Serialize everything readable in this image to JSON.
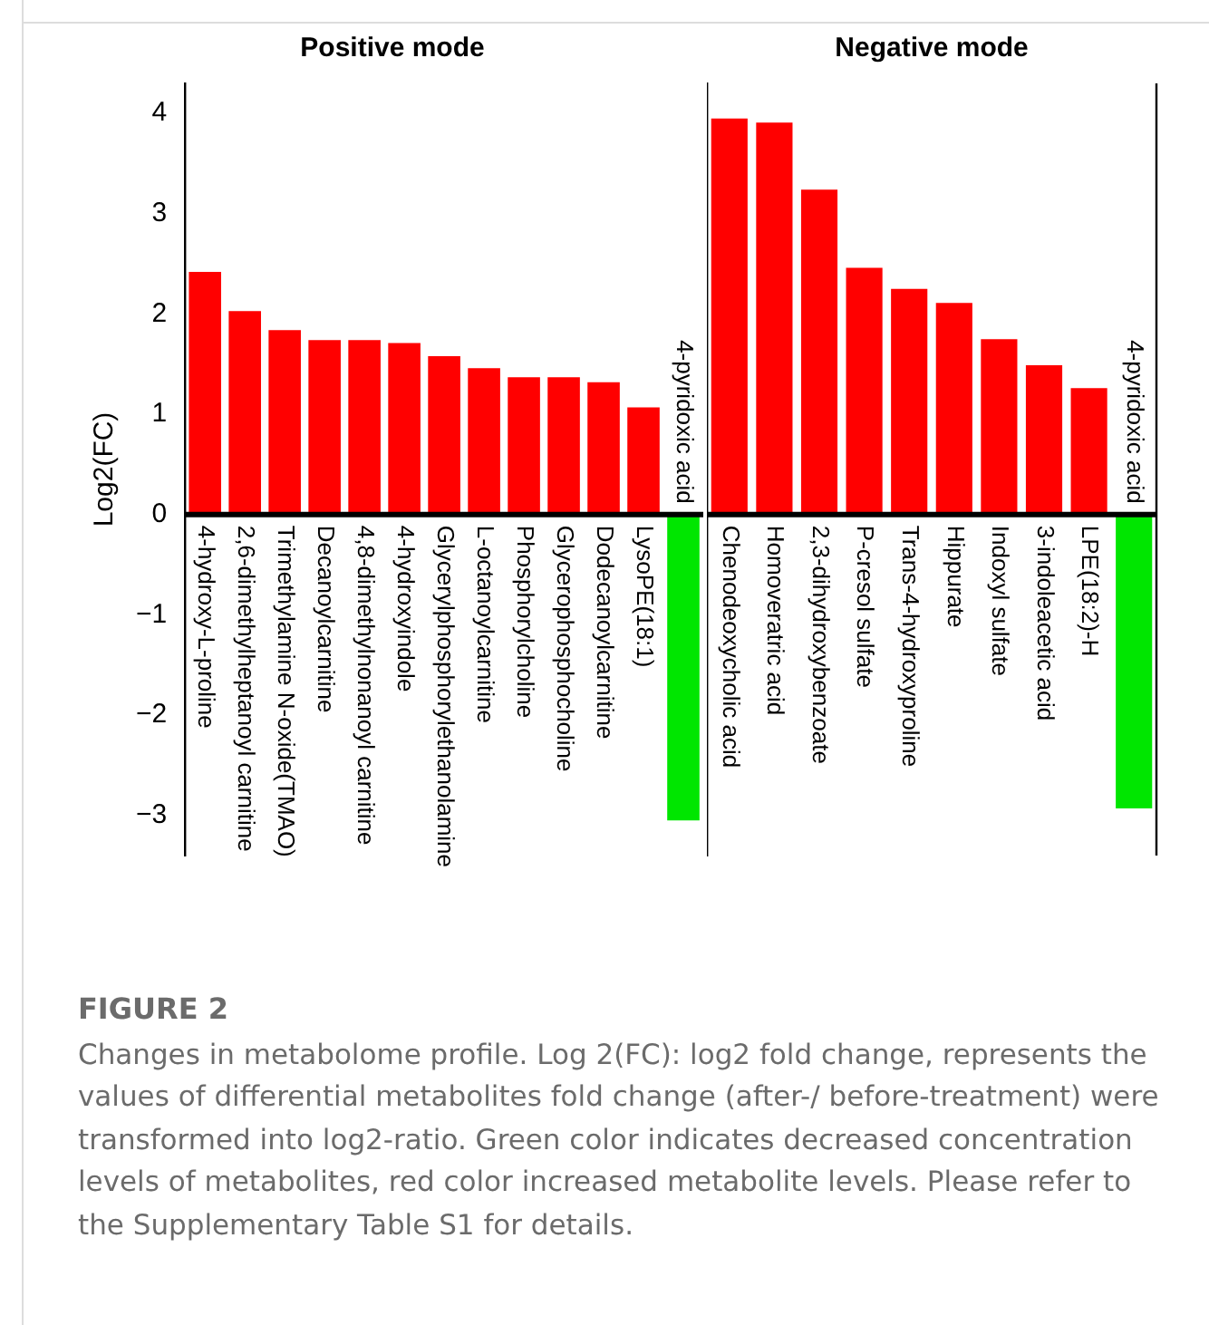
{
  "chart_data": [
    {
      "type": "bar",
      "title": "Positive mode",
      "ylabel": "Log2(FC)",
      "categories": [
        "4-hydroxy-L-proline",
        "2,6-dimethylheptanoyl carnitine",
        "Trimethylamine N-oxide(TMAO)",
        "Decanoylcarnitine",
        "4,8-dimethylnonanoyl carnitine",
        "4-hydroxyindole",
        "Glycerylphosphorylethanolamine",
        "L-octanoylcarnitine",
        "Phosphorylcholine",
        "Glycerophosphocholine",
        "Dodecanoylcarnitine",
        "LysoPE(18:1)",
        "4-pyridoxic acid"
      ],
      "values": [
        2.42,
        2.03,
        1.84,
        1.74,
        1.74,
        1.71,
        1.58,
        1.46,
        1.37,
        1.37,
        1.32,
        1.07,
        -3.05
      ],
      "colors": [
        "#ff0000",
        "#ff0000",
        "#ff0000",
        "#ff0000",
        "#ff0000",
        "#ff0000",
        "#ff0000",
        "#ff0000",
        "#ff0000",
        "#ff0000",
        "#ff0000",
        "#ff0000",
        "#00e600"
      ],
      "ylim": [
        -3.4,
        4.3
      ],
      "yticks": [
        -3,
        -2,
        -1,
        0,
        1,
        2,
        3,
        4
      ],
      "annotations": [
        "FIGURE 2",
        "Changes in metabolome profile. Log 2(FC): log2 fold change, represents the values of differential metabolites fold change (after-/ before-treatment) were transformed into log2-ratio. Green color indicates decreased concentration levels of metabolites, red color increased metabolite levels. Please refer to the Supplementary Table S1 for details."
      ]
    },
    {
      "type": "bar",
      "title": "Negative mode",
      "categories": [
        "Chenodeoxycholic acid",
        "Homoveratric acid",
        "2,3-dihydroxybenzoate",
        "P-cresol sulfate",
        "Trans-4-hydroxyproline",
        "Hippurate",
        "Indoxyl sulfate",
        "3-indoleacetic acid",
        "LPE(18:2)-H",
        "4-pyridoxic acid"
      ],
      "values": [
        3.95,
        3.91,
        3.24,
        2.46,
        2.25,
        2.11,
        1.75,
        1.49,
        1.26,
        -2.93
      ],
      "colors": [
        "#ff0000",
        "#ff0000",
        "#ff0000",
        "#ff0000",
        "#ff0000",
        "#ff0000",
        "#ff0000",
        "#ff0000",
        "#ff0000",
        "#00e600"
      ],
      "ylim": [
        -3.4,
        4.3
      ],
      "yticks": [
        -3,
        -2,
        -1,
        0,
        1,
        2,
        3,
        4
      ],
      "tick_labels": "x"
    }
  ]
}
